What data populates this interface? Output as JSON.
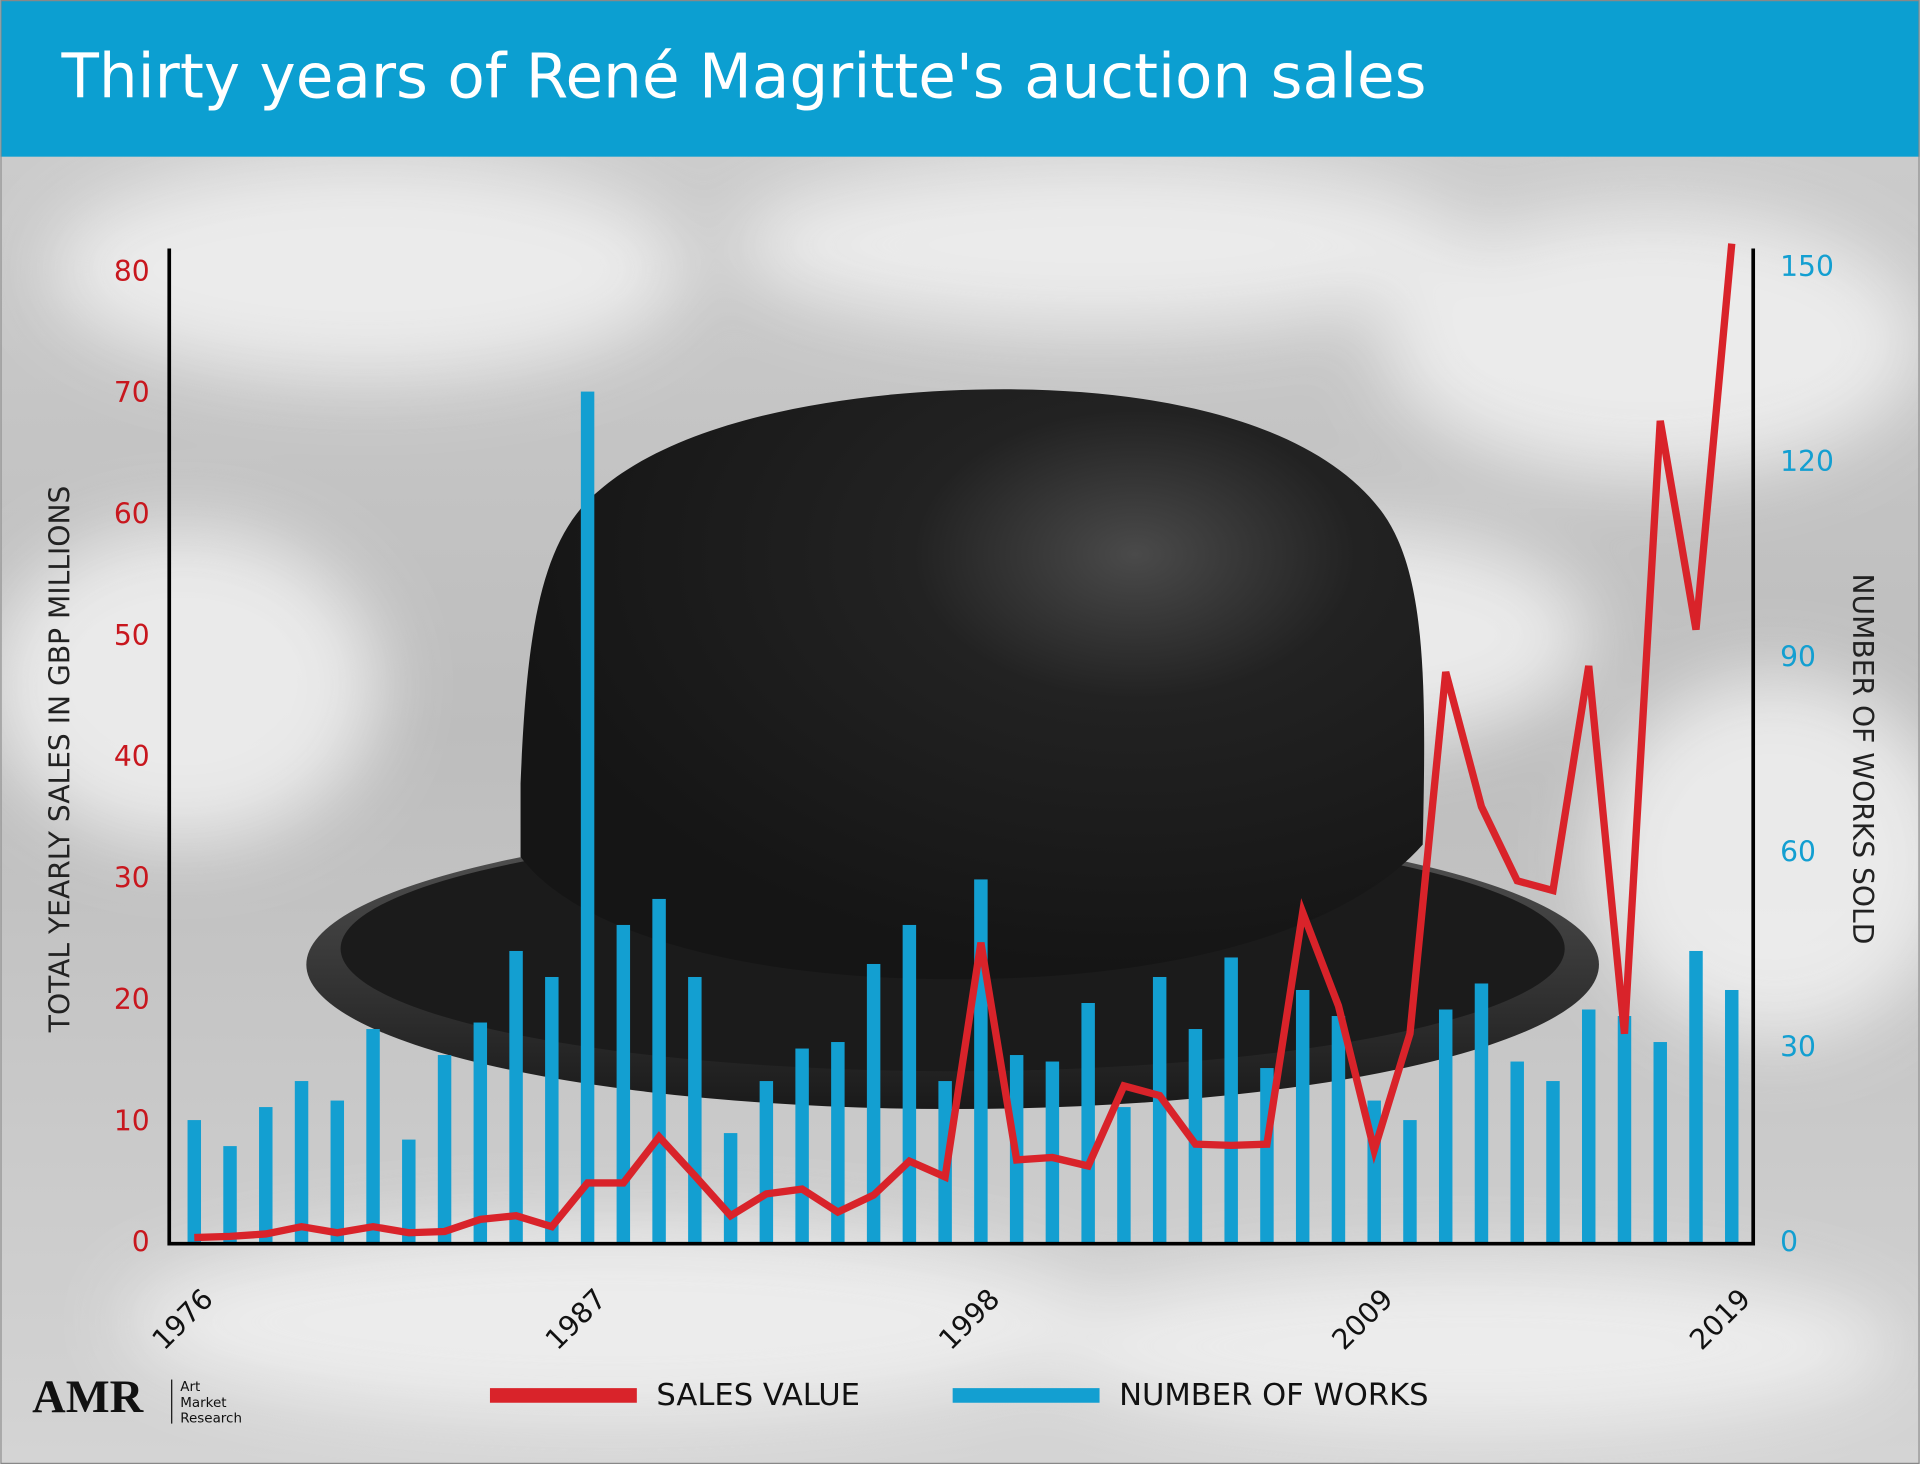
{
  "chart_data": {
    "type": "combo",
    "title": "Thirty years of René Magritte's auction sales",
    "y_label": "TOTAL YEARLY SALES IN GBP MILLIONS",
    "y2_label": "NUMBER OF WORKS SOLD",
    "x": [
      1976,
      1977,
      1978,
      1979,
      1980,
      1981,
      1982,
      1983,
      1984,
      1985,
      1986,
      1987,
      1988,
      1989,
      1990,
      1991,
      1992,
      1993,
      1994,
      1995,
      1996,
      1997,
      1998,
      1999,
      2000,
      2001,
      2002,
      2003,
      2004,
      2005,
      2006,
      2007,
      2008,
      2009,
      2010,
      2011,
      2012,
      2013,
      2014,
      2015,
      2016,
      2017,
      2018,
      2019
    ],
    "xlim": [
      1975.3,
      2019.6
    ],
    "xticks": [
      1976,
      1987,
      1998,
      2009,
      2019
    ],
    "ylim": [
      0,
      82
    ],
    "yticks": [
      0,
      10,
      20,
      30,
      40,
      50,
      60,
      70,
      80
    ],
    "y2lim": [
      0,
      153
    ],
    "y2ticks": [
      0,
      30,
      60,
      90,
      120,
      150
    ],
    "series": [
      {
        "name": "SALES VALUE",
        "type": "line",
        "color": "#d9232a",
        "values": [
          0.5,
          0.6,
          0.8,
          1.4,
          0.9,
          1.4,
          0.9,
          1.0,
          2.0,
          2.3,
          1.4,
          5.0,
          5.0,
          8.8,
          5.6,
          2.3,
          4.1,
          4.5,
          2.6,
          4.0,
          6.8,
          5.5,
          24.8,
          6.9,
          7.1,
          6.4,
          13.0,
          12.2,
          8.2,
          8.1,
          8.2,
          27.3,
          19.6,
          7.7,
          17.3,
          47.1,
          36.0,
          29.9,
          29.1,
          47.6,
          17.3,
          67.8,
          50.6,
          82.4
        ]
      },
      {
        "name": "NUMBER OF WORKS",
        "type": "bar",
        "axis": "y2",
        "color": "#139fd1",
        "values": [
          19,
          15,
          21,
          25,
          22,
          33,
          16,
          29,
          34,
          45,
          41,
          131,
          49,
          53,
          41,
          17,
          25,
          30,
          31,
          43,
          49,
          25,
          56,
          29,
          28,
          37,
          21,
          41,
          33,
          44,
          27,
          39,
          35,
          22,
          19,
          36,
          40,
          28,
          25,
          36,
          35,
          31,
          45,
          39
        ]
      }
    ],
    "logo": {
      "mark": "AMR",
      "lines": [
        "Art",
        "Market",
        "Research"
      ]
    }
  }
}
